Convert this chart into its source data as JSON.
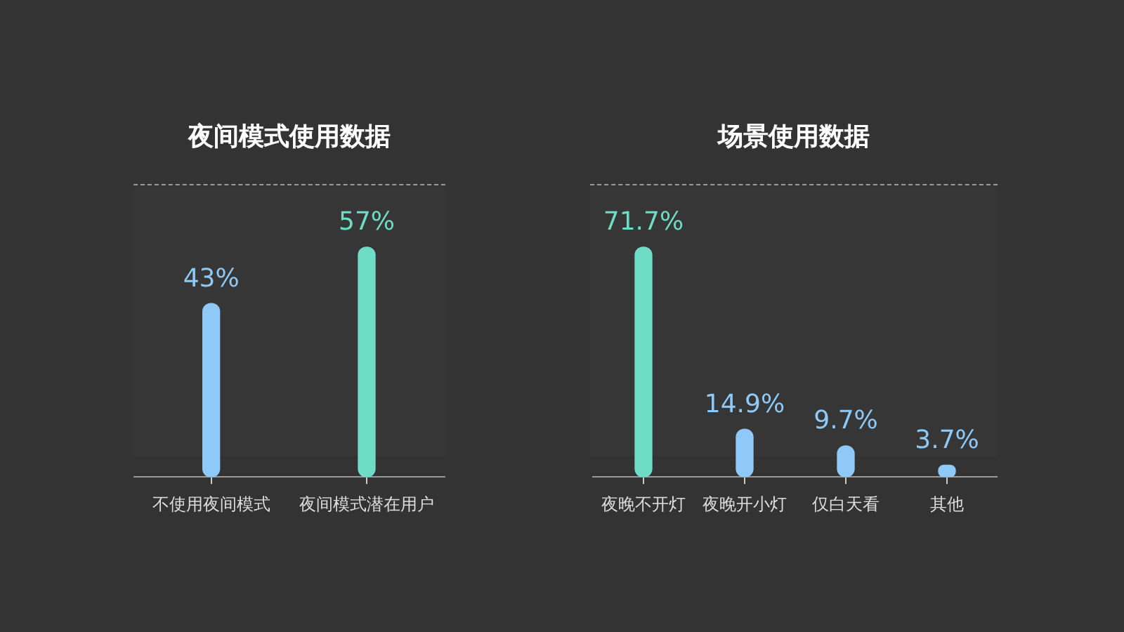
{
  "chart_data": [
    {
      "type": "bar",
      "title": "夜间模式使用数据",
      "categories": [
        "不使用夜间模式",
        "夜间模式潜在用户"
      ],
      "values": [
        43,
        57
      ],
      "colors": [
        "#8ec9f7",
        "#6fdcc6"
      ],
      "value_labels": [
        "43%",
        "57%"
      ],
      "grid": false,
      "legend": false
    },
    {
      "type": "bar",
      "title": "场景使用数据",
      "categories": [
        "夜晚不开灯",
        "夜晚开小灯",
        "仅白天看",
        "其他"
      ],
      "values": [
        71.7,
        14.9,
        9.7,
        3.7
      ],
      "colors": [
        "#6fdcc6",
        "#8ec9f7",
        "#8ec9f7",
        "#8ec9f7"
      ],
      "value_labels": [
        "71.7%",
        "14.9%",
        "9.7%",
        "3.7%"
      ],
      "grid": false,
      "legend": false
    }
  ]
}
